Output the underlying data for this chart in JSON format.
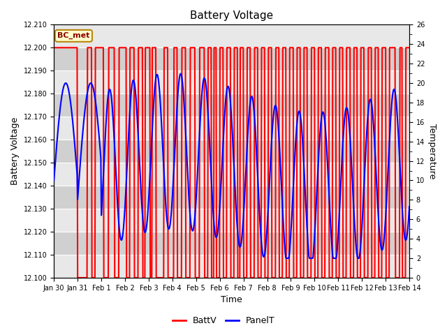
{
  "title": "Battery Voltage",
  "xlabel": "Time",
  "ylabel_left": "Battery Voltage",
  "ylabel_right": "Temperature",
  "legend_label": "BC_met",
  "series_labels": [
    "BattV",
    "PanelT"
  ],
  "x_tick_labels": [
    "Jan 30",
    "Jan 31",
    "Feb 1",
    "Feb 2",
    "Feb 3",
    "Feb 4",
    "Feb 5",
    "Feb 6",
    "Feb 7",
    "Feb 8",
    "Feb 9",
    "Feb 10",
    "Feb 11",
    "Feb 12",
    "Feb 13",
    "Feb 14"
  ],
  "ylim_left": [
    12.1,
    12.21
  ],
  "ylim_right": [
    0,
    26
  ],
  "yticks_left": [
    12.1,
    12.11,
    12.12,
    12.13,
    12.14,
    12.15,
    12.16,
    12.17,
    12.18,
    12.19,
    12.2,
    12.21
  ],
  "yticks_right_labeled": [
    0,
    2,
    4,
    6,
    8,
    10,
    12,
    14,
    16,
    18,
    20,
    22,
    24,
    26
  ],
  "background_color": "#ffffff",
  "plot_bg_color_light": "#e8e8e8",
  "plot_bg_color_dark": "#d0d0d0",
  "grid_color": "#ffffff",
  "batt_color": "#ff0000",
  "panel_color": "#0000ff",
  "annotation_bg": "#ffffcc",
  "annotation_border": "#b8860b"
}
